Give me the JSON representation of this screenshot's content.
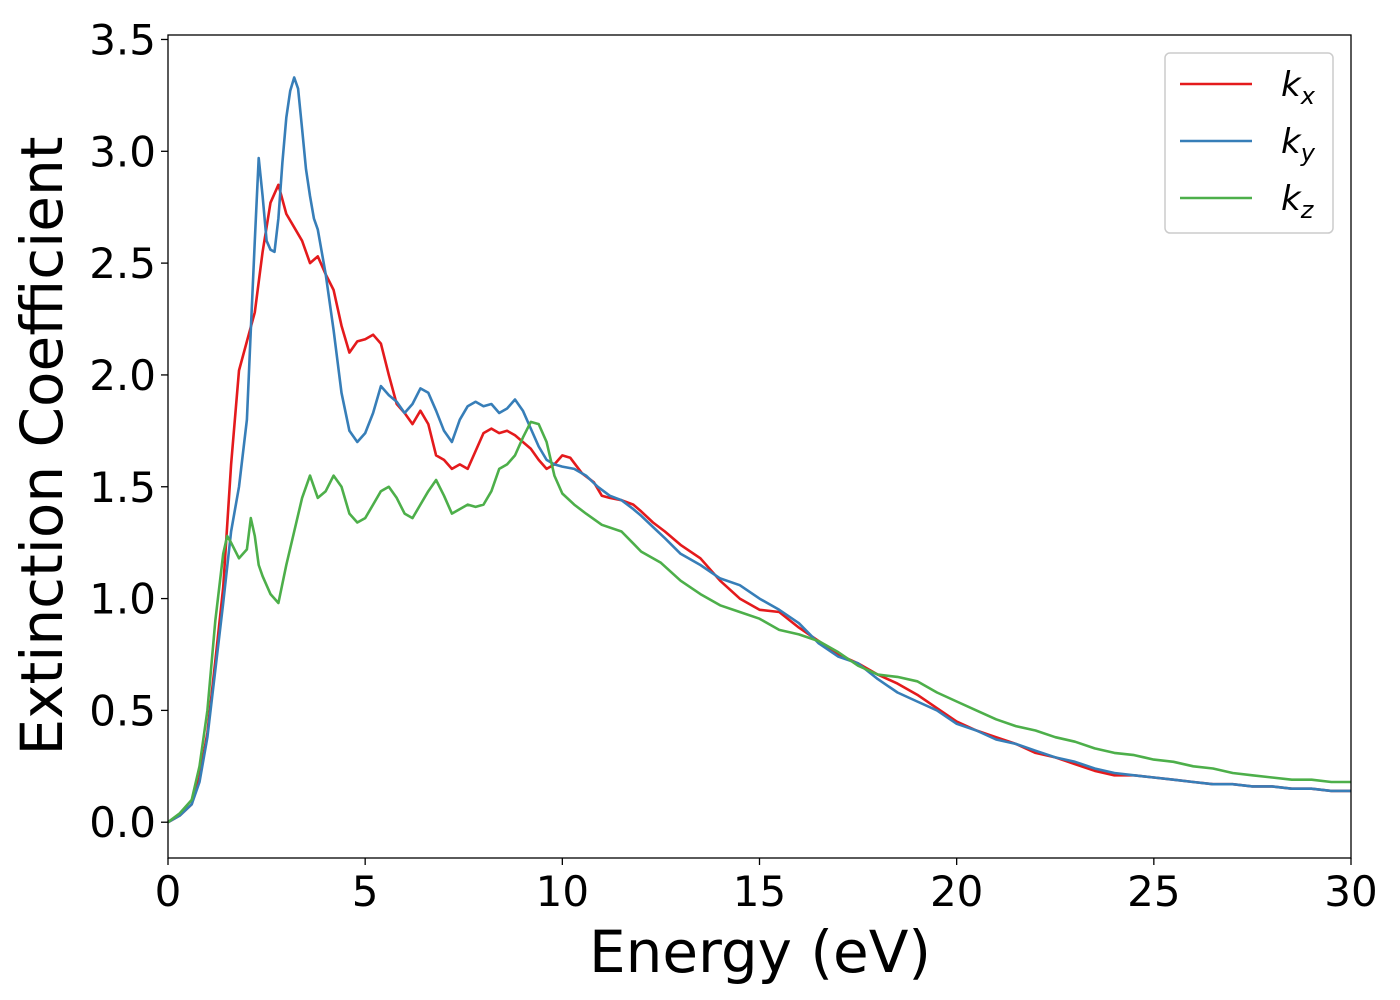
{
  "chart_data": {
    "type": "line",
    "title": "",
    "xlabel": "Energy (eV)",
    "ylabel": "Extinction Coefficient",
    "xlim": [
      0,
      30
    ],
    "ylim": [
      -0.16,
      3.52
    ],
    "xticks": [
      0,
      5,
      10,
      15,
      20,
      25,
      30
    ],
    "xtick_labels": [
      "0",
      "5",
      "10",
      "15",
      "20",
      "25",
      "30"
    ],
    "yticks": [
      0.0,
      0.5,
      1.0,
      1.5,
      2.0,
      2.5,
      3.0,
      3.5
    ],
    "ytick_labels": [
      "0.0",
      "0.5",
      "1.0",
      "1.5",
      "2.0",
      "2.5",
      "3.0",
      "3.5"
    ],
    "grid": false,
    "legend_position": "top-right",
    "series": [
      {
        "name": "k_x",
        "legend_main": "k",
        "legend_sub": "x",
        "color": "#e41a1c",
        "x": [
          0,
          0.3,
          0.6,
          0.8,
          1.0,
          1.2,
          1.4,
          1.6,
          1.8,
          2.0,
          2.2,
          2.4,
          2.6,
          2.8,
          3.0,
          3.2,
          3.4,
          3.6,
          3.8,
          4.0,
          4.2,
          4.4,
          4.6,
          4.8,
          5.0,
          5.2,
          5.4,
          5.6,
          5.8,
          6.0,
          6.2,
          6.4,
          6.6,
          6.8,
          7.0,
          7.2,
          7.4,
          7.6,
          7.8,
          8.0,
          8.2,
          8.4,
          8.6,
          8.8,
          9.0,
          9.2,
          9.4,
          9.6,
          9.8,
          10.0,
          10.2,
          10.5,
          10.8,
          11.0,
          11.2,
          11.5,
          11.8,
          12.0,
          12.3,
          12.6,
          13.0,
          13.5,
          14.0,
          14.5,
          15.0,
          15.5,
          16.0,
          16.5,
          17.0,
          17.5,
          18.0,
          18.5,
          19.0,
          19.5,
          20.0,
          20.5,
          21.0,
          21.5,
          22.0,
          22.5,
          23.0,
          23.5,
          24.0,
          24.5,
          25.0,
          25.5,
          26.0,
          26.5,
          27.0,
          27.5,
          28.0,
          28.5,
          29.0,
          29.5,
          30.0
        ],
        "y": [
          0.0,
          0.03,
          0.08,
          0.2,
          0.4,
          0.72,
          1.05,
          1.6,
          2.02,
          2.15,
          2.28,
          2.55,
          2.77,
          2.85,
          2.72,
          2.66,
          2.6,
          2.5,
          2.53,
          2.45,
          2.38,
          2.22,
          2.1,
          2.15,
          2.16,
          2.18,
          2.14,
          2.0,
          1.87,
          1.83,
          1.78,
          1.84,
          1.78,
          1.64,
          1.62,
          1.58,
          1.6,
          1.58,
          1.66,
          1.74,
          1.76,
          1.74,
          1.75,
          1.73,
          1.7,
          1.67,
          1.62,
          1.58,
          1.6,
          1.64,
          1.63,
          1.56,
          1.52,
          1.46,
          1.45,
          1.44,
          1.42,
          1.39,
          1.34,
          1.3,
          1.24,
          1.18,
          1.08,
          1.0,
          0.95,
          0.94,
          0.87,
          0.81,
          0.75,
          0.71,
          0.66,
          0.62,
          0.57,
          0.51,
          0.45,
          0.41,
          0.38,
          0.35,
          0.31,
          0.29,
          0.26,
          0.23,
          0.21,
          0.21,
          0.2,
          0.19,
          0.18,
          0.17,
          0.17,
          0.16,
          0.16,
          0.15,
          0.15,
          0.14,
          0.14
        ]
      },
      {
        "name": "k_y",
        "legend_main": "k",
        "legend_sub": "y",
        "color": "#377eb8",
        "x": [
          0,
          0.3,
          0.6,
          0.8,
          1.0,
          1.2,
          1.4,
          1.6,
          1.8,
          2.0,
          2.1,
          2.2,
          2.3,
          2.4,
          2.5,
          2.6,
          2.7,
          2.8,
          2.9,
          3.0,
          3.1,
          3.2,
          3.3,
          3.4,
          3.5,
          3.6,
          3.7,
          3.8,
          4.0,
          4.2,
          4.4,
          4.6,
          4.8,
          5.0,
          5.2,
          5.4,
          5.6,
          5.8,
          6.0,
          6.2,
          6.4,
          6.6,
          6.8,
          7.0,
          7.2,
          7.4,
          7.6,
          7.8,
          8.0,
          8.2,
          8.4,
          8.6,
          8.8,
          9.0,
          9.2,
          9.4,
          9.6,
          9.8,
          10.0,
          10.3,
          10.6,
          10.9,
          11.2,
          11.5,
          11.8,
          12.0,
          12.3,
          12.6,
          13.0,
          13.5,
          14.0,
          14.5,
          15.0,
          15.5,
          16.0,
          16.5,
          17.0,
          17.5,
          18.0,
          18.5,
          19.0,
          19.5,
          20.0,
          20.5,
          21.0,
          21.5,
          22.0,
          22.5,
          23.0,
          23.5,
          24.0,
          24.5,
          25.0,
          25.5,
          26.0,
          26.5,
          27.0,
          27.5,
          28.0,
          28.5,
          29.0,
          29.5,
          30.0
        ],
        "y": [
          0.0,
          0.03,
          0.08,
          0.18,
          0.38,
          0.68,
          0.98,
          1.3,
          1.5,
          1.8,
          2.2,
          2.6,
          2.97,
          2.8,
          2.6,
          2.56,
          2.55,
          2.7,
          2.95,
          3.15,
          3.27,
          3.33,
          3.28,
          3.1,
          2.92,
          2.8,
          2.7,
          2.65,
          2.45,
          2.2,
          1.92,
          1.75,
          1.7,
          1.74,
          1.83,
          1.95,
          1.91,
          1.88,
          1.83,
          1.87,
          1.94,
          1.92,
          1.84,
          1.75,
          1.7,
          1.8,
          1.86,
          1.88,
          1.86,
          1.87,
          1.83,
          1.85,
          1.89,
          1.84,
          1.76,
          1.68,
          1.62,
          1.6,
          1.59,
          1.58,
          1.55,
          1.5,
          1.46,
          1.44,
          1.4,
          1.37,
          1.32,
          1.27,
          1.2,
          1.15,
          1.09,
          1.06,
          1.0,
          0.95,
          0.89,
          0.8,
          0.74,
          0.71,
          0.64,
          0.58,
          0.54,
          0.5,
          0.44,
          0.41,
          0.37,
          0.35,
          0.32,
          0.29,
          0.27,
          0.24,
          0.22,
          0.21,
          0.2,
          0.19,
          0.18,
          0.17,
          0.17,
          0.16,
          0.16,
          0.15,
          0.15,
          0.14,
          0.14
        ]
      },
      {
        "name": "k_z",
        "legend_main": "k",
        "legend_sub": "z",
        "color": "#4daf4a",
        "x": [
          0,
          0.3,
          0.6,
          0.8,
          1.0,
          1.2,
          1.4,
          1.5,
          1.6,
          1.8,
          2.0,
          2.1,
          2.2,
          2.3,
          2.4,
          2.6,
          2.8,
          3.0,
          3.2,
          3.4,
          3.6,
          3.8,
          4.0,
          4.2,
          4.4,
          4.6,
          4.8,
          5.0,
          5.2,
          5.4,
          5.6,
          5.8,
          6.0,
          6.2,
          6.4,
          6.6,
          6.8,
          7.0,
          7.2,
          7.4,
          7.6,
          7.8,
          8.0,
          8.2,
          8.4,
          8.6,
          8.8,
          9.0,
          9.2,
          9.4,
          9.6,
          9.8,
          10.0,
          10.3,
          10.6,
          11.0,
          11.5,
          12.0,
          12.5,
          13.0,
          13.5,
          14.0,
          14.5,
          15.0,
          15.5,
          16.0,
          16.5,
          17.0,
          17.5,
          18.0,
          18.5,
          19.0,
          19.5,
          20.0,
          20.5,
          21.0,
          21.5,
          22.0,
          22.5,
          23.0,
          23.5,
          24.0,
          24.5,
          25.0,
          25.5,
          26.0,
          26.5,
          27.0,
          27.5,
          28.0,
          28.5,
          29.0,
          29.5,
          30.0
        ],
        "y": [
          0.0,
          0.04,
          0.1,
          0.25,
          0.5,
          0.9,
          1.2,
          1.28,
          1.25,
          1.18,
          1.22,
          1.36,
          1.28,
          1.15,
          1.1,
          1.02,
          0.98,
          1.15,
          1.3,
          1.45,
          1.55,
          1.45,
          1.48,
          1.55,
          1.5,
          1.38,
          1.34,
          1.36,
          1.42,
          1.48,
          1.5,
          1.45,
          1.38,
          1.36,
          1.42,
          1.48,
          1.53,
          1.46,
          1.38,
          1.4,
          1.42,
          1.41,
          1.42,
          1.48,
          1.58,
          1.6,
          1.64,
          1.72,
          1.79,
          1.78,
          1.7,
          1.55,
          1.47,
          1.42,
          1.38,
          1.33,
          1.3,
          1.21,
          1.16,
          1.08,
          1.02,
          0.97,
          0.94,
          0.91,
          0.86,
          0.84,
          0.81,
          0.76,
          0.7,
          0.66,
          0.65,
          0.63,
          0.58,
          0.54,
          0.5,
          0.46,
          0.43,
          0.41,
          0.38,
          0.36,
          0.33,
          0.31,
          0.3,
          0.28,
          0.27,
          0.25,
          0.24,
          0.22,
          0.21,
          0.2,
          0.19,
          0.19,
          0.18,
          0.18
        ]
      }
    ]
  }
}
